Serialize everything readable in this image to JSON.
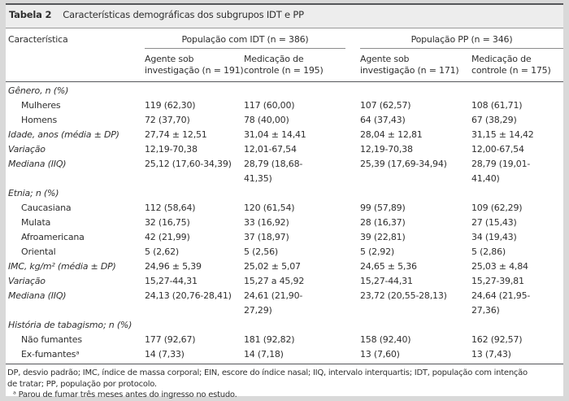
{
  "table": {
    "title_label": "Tabela 2",
    "title": "Características demográficas dos subgrupos IDT e PP",
    "col1_header": "Característica",
    "groups": [
      {
        "label": "População com IDT (n = 386)",
        "subcols": [
          "Agente sob\ninvestigação (n = 191)",
          "Medicação de\ncontrole (n = 195)"
        ]
      },
      {
        "label": "População PP (n = 346)",
        "subcols": [
          "Agente sob\ninvestigação (n = 171)",
          "Medicação de\ncontrole (n = 175)"
        ]
      }
    ],
    "rows": [
      {
        "style": "section",
        "label": "Gênero, n (%)",
        "values": [
          "",
          "",
          "",
          ""
        ]
      },
      {
        "style": "item",
        "label": "Mulheres",
        "values": [
          "119 (62,30)",
          "117 (60,00)",
          "107 (62,57)",
          "108 (61,71)"
        ]
      },
      {
        "style": "item",
        "label": "Homens",
        "values": [
          "72 (37,70)",
          "78 (40,00)",
          "64 (37,43)",
          "67 (38,29)"
        ]
      },
      {
        "style": "measure",
        "label": "Idade, anos (média ± DP)",
        "values": [
          "27,74 ± 12,51",
          "31,04 ± 14,41",
          "28,04 ± 12,81",
          "31,15 ± 14,42"
        ]
      },
      {
        "style": "measure",
        "label": "Variação",
        "values": [
          "12,19-70,38",
          "12,01-67,54",
          "12,19-70,38",
          "12,00-67,54"
        ]
      },
      {
        "style": "measure",
        "label": "Mediana (IIQ)",
        "values": [
          "25,12 (17,60-34,39)",
          "28,79 (18,68-\n41,35)",
          "25,39 (17,69-34,94)",
          "28,79 (19,01-\n41,40)"
        ]
      },
      {
        "style": "section",
        "label": "Etnia; n (%)",
        "values": [
          "",
          "",
          "",
          ""
        ]
      },
      {
        "style": "item",
        "label": "Caucasiana",
        "values": [
          "112 (58,64)",
          "120 (61,54)",
          "99 (57,89)",
          "109 (62,29)"
        ]
      },
      {
        "style": "item",
        "label": "Mulata",
        "values": [
          "32 (16,75)",
          "33 (16,92)",
          "28 (16,37)",
          "27 (15,43)"
        ]
      },
      {
        "style": "item",
        "label": "Afroamericana",
        "values": [
          "42 (21,99)",
          "37 (18,97)",
          "39 (22,81)",
          "34 (19,43)"
        ]
      },
      {
        "style": "item",
        "label": "Oriental",
        "values": [
          "5 (2,62)",
          "5 (2,56)",
          "5 (2,92)",
          "5 (2,86)"
        ]
      },
      {
        "style": "measure",
        "label": "IMC, kg/m² (média ± DP)",
        "values": [
          "24,96 ± 5,39",
          "25,02 ± 5,07",
          "24,65 ± 5,36",
          "25,03 ± 4,84"
        ]
      },
      {
        "style": "measure",
        "label": "Variação",
        "values": [
          "15,27-44,31",
          "15,27 a 45,92",
          "15,27-44,31",
          "15,27-39,81"
        ]
      },
      {
        "style": "measure",
        "label": "Mediana (IIQ)",
        "values": [
          "24,13 (20,76-28,41)",
          "24,61 (21,90-\n27,29)",
          "23,72 (20,55-28,13)",
          "24,64 (21,95-\n27,36)"
        ]
      },
      {
        "style": "section",
        "label": "História de tabagismo; n (%)",
        "values": [
          "",
          "",
          "",
          ""
        ]
      },
      {
        "style": "item",
        "label": "Não fumantes",
        "values": [
          "177 (92,67)",
          "181 (92,82)",
          "158 (92,40)",
          "162 (92,57)"
        ]
      },
      {
        "style": "item",
        "label": "Ex-fumantesᵃ",
        "values": [
          "14 (7,33)",
          "14 (7,18)",
          "13 (7,60)",
          "13 (7,43)"
        ]
      }
    ],
    "footnotes": [
      "DP, desvio padrão; IMC, índice de massa corporal; EIN, escore do índice nasal; IIQ, intervalo interquartis; IDT, população com intenção\nde tratar; PP, população por protocolo.",
      "ᵃ Parou de fumar três meses antes do ingresso no estudo."
    ]
  }
}
